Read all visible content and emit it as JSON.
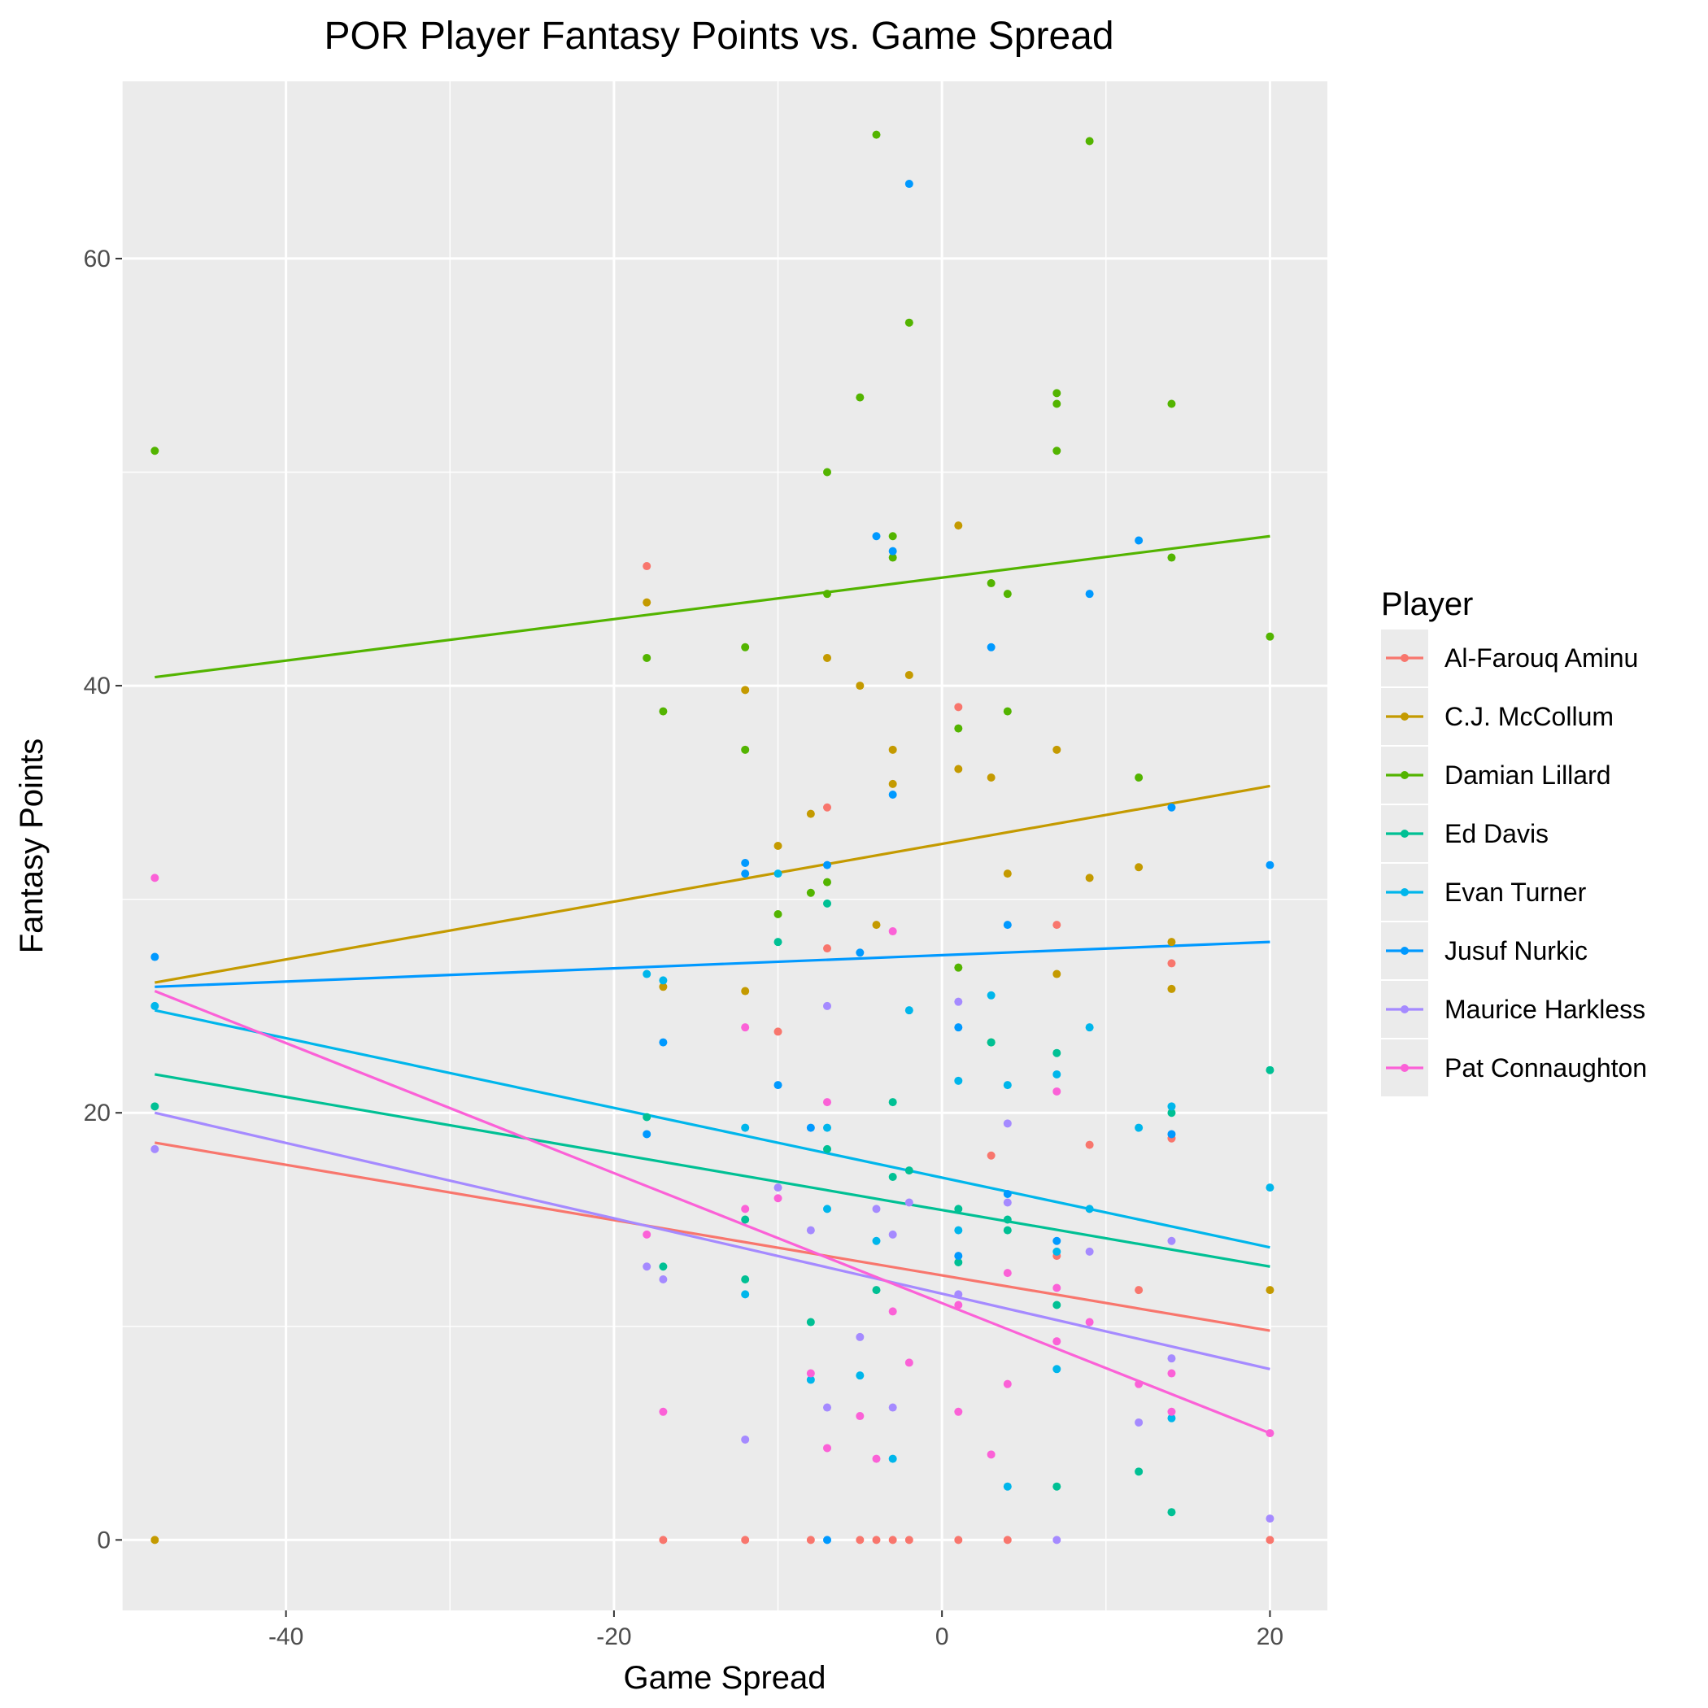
{
  "chart_data": {
    "type": "scatter",
    "title": "POR Player Fantasy Points vs. Game Spread",
    "xlabel": "Game Spread",
    "ylabel": "Fantasy Points",
    "xlim": [
      -50,
      23.5
    ],
    "ylim": [
      -3.3,
      68.3
    ],
    "x_ticks": [
      -40,
      -20,
      0,
      20
    ],
    "y_ticks": [
      0,
      20,
      40,
      60
    ],
    "grid": true,
    "legend": {
      "title": "Player",
      "position": "right"
    },
    "series": [
      {
        "name": "Al-Farouq Aminu",
        "color": "#F8766D",
        "trend": [
          [
            -48,
            18.6
          ],
          [
            20,
            9.8
          ]
        ],
        "points": [
          [
            -17,
            0
          ],
          [
            -12,
            0
          ],
          [
            -8,
            0
          ],
          [
            -5,
            0
          ],
          [
            -4,
            0
          ],
          [
            -3,
            0
          ],
          [
            -2,
            0
          ],
          [
            1,
            0
          ],
          [
            4,
            0
          ],
          [
            20,
            0
          ],
          [
            -18,
            45.6
          ],
          [
            -7,
            34.3
          ],
          [
            -7,
            27.7
          ],
          [
            -10,
            23.8
          ],
          [
            1,
            39
          ],
          [
            3,
            18
          ],
          [
            7,
            28.8
          ],
          [
            7,
            13.3
          ],
          [
            9,
            18.5
          ],
          [
            12,
            11.7
          ],
          [
            14,
            18.8
          ],
          [
            14,
            27
          ]
        ]
      },
      {
        "name": "C.J. McCollum",
        "color": "#C49A00",
        "trend": [
          [
            -48,
            26.1
          ],
          [
            20,
            35.3
          ]
        ],
        "points": [
          [
            -48,
            0
          ],
          [
            -18,
            43.9
          ],
          [
            -17,
            25.9
          ],
          [
            -12,
            39.8
          ],
          [
            -12,
            25.7
          ],
          [
            -10,
            32.5
          ],
          [
            -8,
            34
          ],
          [
            -7,
            41.3
          ],
          [
            -5,
            40
          ],
          [
            -4,
            28.8
          ],
          [
            -3,
            35.4
          ],
          [
            -3,
            37
          ],
          [
            -2,
            40.5
          ],
          [
            1,
            47.5
          ],
          [
            1,
            36.1
          ],
          [
            3,
            35.7
          ],
          [
            4,
            31.2
          ],
          [
            7,
            37
          ],
          [
            7,
            26.5
          ],
          [
            9,
            31
          ],
          [
            12,
            31.5
          ],
          [
            14,
            28
          ],
          [
            14,
            25.8
          ],
          [
            20,
            11.7
          ]
        ]
      },
      {
        "name": "Damian Lillard",
        "color": "#53B400",
        "trend": [
          [
            -48,
            40.4
          ],
          [
            20,
            47
          ]
        ],
        "points": [
          [
            -48,
            51
          ],
          [
            -18,
            41.3
          ],
          [
            -17,
            38.8
          ],
          [
            -12,
            41.8
          ],
          [
            -12,
            37
          ],
          [
            -10,
            29.3
          ],
          [
            -8,
            30.3
          ],
          [
            -7,
            50
          ],
          [
            -7,
            44.3
          ],
          [
            -7,
            30.8
          ],
          [
            -5,
            53.5
          ],
          [
            -4,
            65.8
          ],
          [
            -3,
            47
          ],
          [
            -3,
            46
          ],
          [
            -2,
            57
          ],
          [
            1,
            38
          ],
          [
            1,
            26.8
          ],
          [
            3,
            44.8
          ],
          [
            3,
            23.3
          ],
          [
            4,
            44.3
          ],
          [
            4,
            38.8
          ],
          [
            7,
            53.7
          ],
          [
            7,
            53.2
          ],
          [
            7,
            51
          ],
          [
            9,
            65.5
          ],
          [
            12,
            35.7
          ],
          [
            14,
            53.2
          ],
          [
            14,
            46
          ],
          [
            20,
            42.3
          ]
        ]
      },
      {
        "name": "Ed Davis",
        "color": "#00C094",
        "trend": [
          [
            -48,
            21.8
          ],
          [
            20,
            12.8
          ]
        ],
        "points": [
          [
            -48,
            20.3
          ],
          [
            -18,
            19.8
          ],
          [
            -17,
            12.8
          ],
          [
            -12,
            15
          ],
          [
            -12,
            12.2
          ],
          [
            -10,
            28
          ],
          [
            -8,
            10.2
          ],
          [
            -7,
            29.8
          ],
          [
            -7,
            18.3
          ],
          [
            -4,
            11.7
          ],
          [
            -3,
            20.5
          ],
          [
            -3,
            17
          ],
          [
            -2,
            17.3
          ],
          [
            1,
            15.5
          ],
          [
            1,
            13
          ],
          [
            3,
            23.3
          ],
          [
            4,
            14.5
          ],
          [
            4,
            15
          ],
          [
            7,
            22.8
          ],
          [
            7,
            11
          ],
          [
            7,
            2.5
          ],
          [
            12,
            3.2
          ],
          [
            14,
            20
          ],
          [
            14,
            1.3
          ],
          [
            20,
            22
          ]
        ]
      },
      {
        "name": "Evan Turner",
        "color": "#00B6EB",
        "trend": [
          [
            -48,
            24.8
          ],
          [
            20,
            13.7
          ]
        ],
        "points": [
          [
            -48,
            25
          ],
          [
            -18,
            26.5
          ],
          [
            -17,
            26.2
          ],
          [
            -12,
            19.3
          ],
          [
            -12,
            11.5
          ],
          [
            -10,
            31.2
          ],
          [
            -8,
            7.5
          ],
          [
            -7,
            19.3
          ],
          [
            -7,
            15.5
          ],
          [
            -5,
            7.7
          ],
          [
            -4,
            14
          ],
          [
            -3,
            3.8
          ],
          [
            -2,
            24.8
          ],
          [
            1,
            21.5
          ],
          [
            1,
            14.5
          ],
          [
            3,
            25.5
          ],
          [
            4,
            21.3
          ],
          [
            4,
            2.5
          ],
          [
            7,
            21.8
          ],
          [
            7,
            13.5
          ],
          [
            7,
            8
          ],
          [
            9,
            24
          ],
          [
            9,
            15.5
          ],
          [
            12,
            19.3
          ],
          [
            14,
            5.7
          ],
          [
            14,
            20.3
          ],
          [
            20,
            16.5
          ]
        ]
      },
      {
        "name": "Jusuf Nurkic",
        "color": "#0099FF",
        "trend": [
          [
            -48,
            25.9
          ],
          [
            20,
            28
          ]
        ],
        "points": [
          [
            -48,
            27.3
          ],
          [
            -18,
            19
          ],
          [
            -17,
            23.3
          ],
          [
            -12,
            31.2
          ],
          [
            -12,
            31.7
          ],
          [
            -10,
            21.3
          ],
          [
            -8,
            19.3
          ],
          [
            -7,
            31.6
          ],
          [
            -7,
            0
          ],
          [
            -5,
            27.5
          ],
          [
            -4,
            47
          ],
          [
            -3,
            46.3
          ],
          [
            -3,
            34.9
          ],
          [
            -2,
            63.5
          ],
          [
            1,
            24
          ],
          [
            1,
            13.3
          ],
          [
            3,
            41.8
          ],
          [
            4,
            28.8
          ],
          [
            4,
            16.2
          ],
          [
            7,
            14
          ],
          [
            9,
            44.3
          ],
          [
            12,
            46.8
          ],
          [
            14,
            34.3
          ],
          [
            14,
            19
          ],
          [
            20,
            31.6
          ]
        ]
      },
      {
        "name": "Maurice Harkless",
        "color": "#A58AFF",
        "trend": [
          [
            -48,
            20
          ],
          [
            20,
            8
          ]
        ],
        "points": [
          [
            -48,
            18.3
          ],
          [
            -18,
            12.8
          ],
          [
            -17,
            12.2
          ],
          [
            -12,
            4.7
          ],
          [
            -10,
            16.5
          ],
          [
            -8,
            14.5
          ],
          [
            -7,
            25
          ],
          [
            -7,
            6.2
          ],
          [
            -5,
            9.5
          ],
          [
            -4,
            15.5
          ],
          [
            -3,
            14.3
          ],
          [
            -3,
            6.2
          ],
          [
            -2,
            15.8
          ],
          [
            1,
            25.2
          ],
          [
            1,
            11.5
          ],
          [
            4,
            19.5
          ],
          [
            4,
            15.8
          ],
          [
            7,
            0
          ],
          [
            9,
            13.5
          ],
          [
            12,
            5.5
          ],
          [
            14,
            8.5
          ],
          [
            14,
            14
          ],
          [
            20,
            1
          ]
        ]
      },
      {
        "name": "Pat Connaughton",
        "color": "#FB61D7",
        "trend": [
          [
            -48,
            25.7
          ],
          [
            20,
            5
          ]
        ],
        "points": [
          [
            -48,
            31
          ],
          [
            -18,
            14.3
          ],
          [
            -17,
            6
          ],
          [
            -12,
            24
          ],
          [
            -12,
            15.5
          ],
          [
            -10,
            16
          ],
          [
            -8,
            7.8
          ],
          [
            -7,
            20.5
          ],
          [
            -7,
            4.3
          ],
          [
            -5,
            5.8
          ],
          [
            -4,
            3.8
          ],
          [
            -3,
            28.5
          ],
          [
            -3,
            10.7
          ],
          [
            -2,
            8.3
          ],
          [
            1,
            6
          ],
          [
            1,
            11
          ],
          [
            3,
            4
          ],
          [
            4,
            12.5
          ],
          [
            4,
            7.3
          ],
          [
            7,
            21
          ],
          [
            7,
            11.8
          ],
          [
            7,
            9.3
          ],
          [
            9,
            10.2
          ],
          [
            12,
            7.3
          ],
          [
            14,
            7.8
          ],
          [
            14,
            6
          ],
          [
            20,
            5
          ]
        ]
      }
    ]
  }
}
